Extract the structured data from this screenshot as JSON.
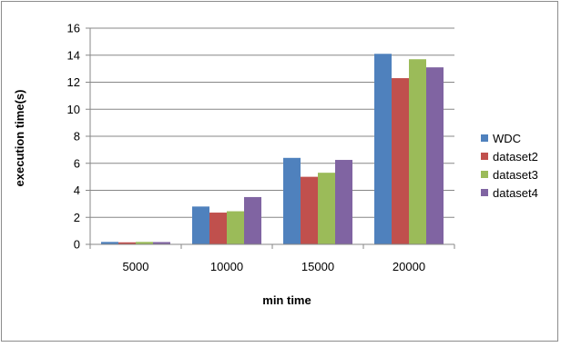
{
  "chart_data": {
    "type": "bar",
    "title": "",
    "xlabel": "min time",
    "ylabel": "execution time(s)",
    "categories": [
      "5000",
      "10000",
      "15000",
      "20000"
    ],
    "ylim": [
      0,
      16
    ],
    "yticks": [
      0,
      2,
      4,
      6,
      8,
      10,
      12,
      14,
      16
    ],
    "grid": true,
    "legend_position": "right",
    "series": [
      {
        "name": "WDC",
        "color": "#4f81bd",
        "values": [
          0.18,
          2.8,
          6.4,
          14.1
        ]
      },
      {
        "name": "dataset2",
        "color": "#c0504d",
        "values": [
          0.15,
          2.35,
          5.0,
          12.3
        ]
      },
      {
        "name": "dataset3",
        "color": "#9bbb59",
        "values": [
          0.18,
          2.45,
          5.3,
          13.7
        ]
      },
      {
        "name": "dataset4",
        "color": "#8064a2",
        "values": [
          0.17,
          3.5,
          6.25,
          13.1
        ]
      }
    ]
  }
}
